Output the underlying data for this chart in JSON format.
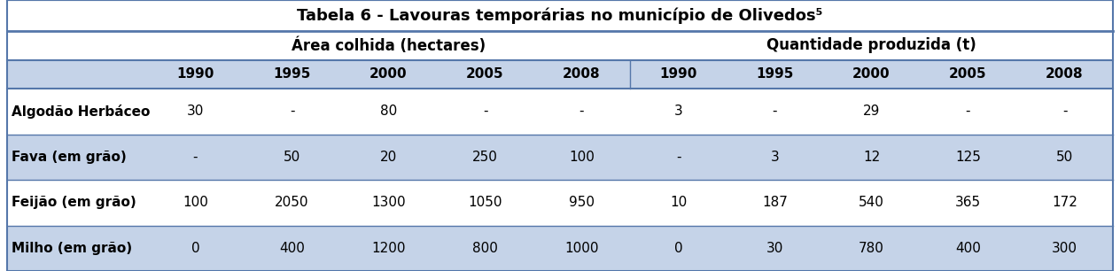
{
  "title": "Tabela 6 - Lavouras temporárias no município de Olivedos⁵",
  "header1": "Área colhida (hectares)",
  "header2": "Quantidade produzida (t)",
  "years": [
    "1990",
    "1995",
    "2000",
    "2005",
    "2008",
    "1990",
    "1995",
    "2000",
    "2005",
    "2008"
  ],
  "row_labels": [
    "Algodão Herbáceo",
    "Fava (em grão)",
    "Feijão (em grão)",
    "Milho (em grão)"
  ],
  "rows": [
    [
      "30",
      "-",
      "80",
      "-",
      "-",
      "3",
      "-",
      "29",
      "-",
      "-"
    ],
    [
      "-",
      "50",
      "20",
      "250",
      "100",
      "-",
      "3",
      "12",
      "125",
      "50"
    ],
    [
      "100",
      "2050",
      "1300",
      "1050",
      "950",
      "10",
      "187",
      "540",
      "365",
      "172"
    ],
    [
      "0",
      "400",
      "1200",
      "800",
      "1000",
      "0",
      "30",
      "780",
      "400",
      "300"
    ]
  ],
  "bg_light_blue": "#c5d3e8",
  "bg_white": "#ffffff",
  "border_color": "#5577aa",
  "text_color": "#000000",
  "title_fontsize": 13,
  "header_fontsize": 12,
  "year_fontsize": 11,
  "cell_fontsize": 11,
  "label_fontsize": 11,
  "fig_width": 12.64,
  "fig_height": 3.06,
  "dpi": 100
}
